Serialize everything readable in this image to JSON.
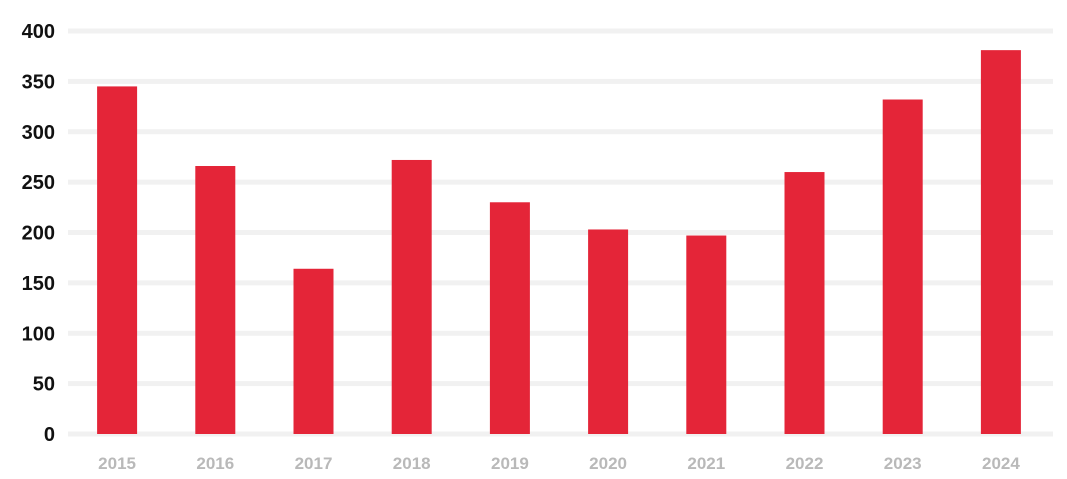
{
  "chart_data": {
    "type": "bar",
    "title": "",
    "xlabel": "",
    "ylabel": "",
    "categories": [
      "2015",
      "2016",
      "2017",
      "2018",
      "2019",
      "2020",
      "2021",
      "2022",
      "2023",
      "2024"
    ],
    "values": [
      345,
      266,
      164,
      272,
      230,
      203,
      197,
      260,
      332,
      381
    ],
    "ylim": [
      0,
      400
    ],
    "yticks": [
      "0",
      "50",
      "100",
      "150",
      "200",
      "250",
      "300",
      "350",
      "400"
    ],
    "grid": true,
    "legend": "none",
    "colors": {
      "bar": "#e42538",
      "grid": "#f1f1f1",
      "y_tick_text": "#111111",
      "x_tick_text": "#b9b9b9"
    }
  }
}
